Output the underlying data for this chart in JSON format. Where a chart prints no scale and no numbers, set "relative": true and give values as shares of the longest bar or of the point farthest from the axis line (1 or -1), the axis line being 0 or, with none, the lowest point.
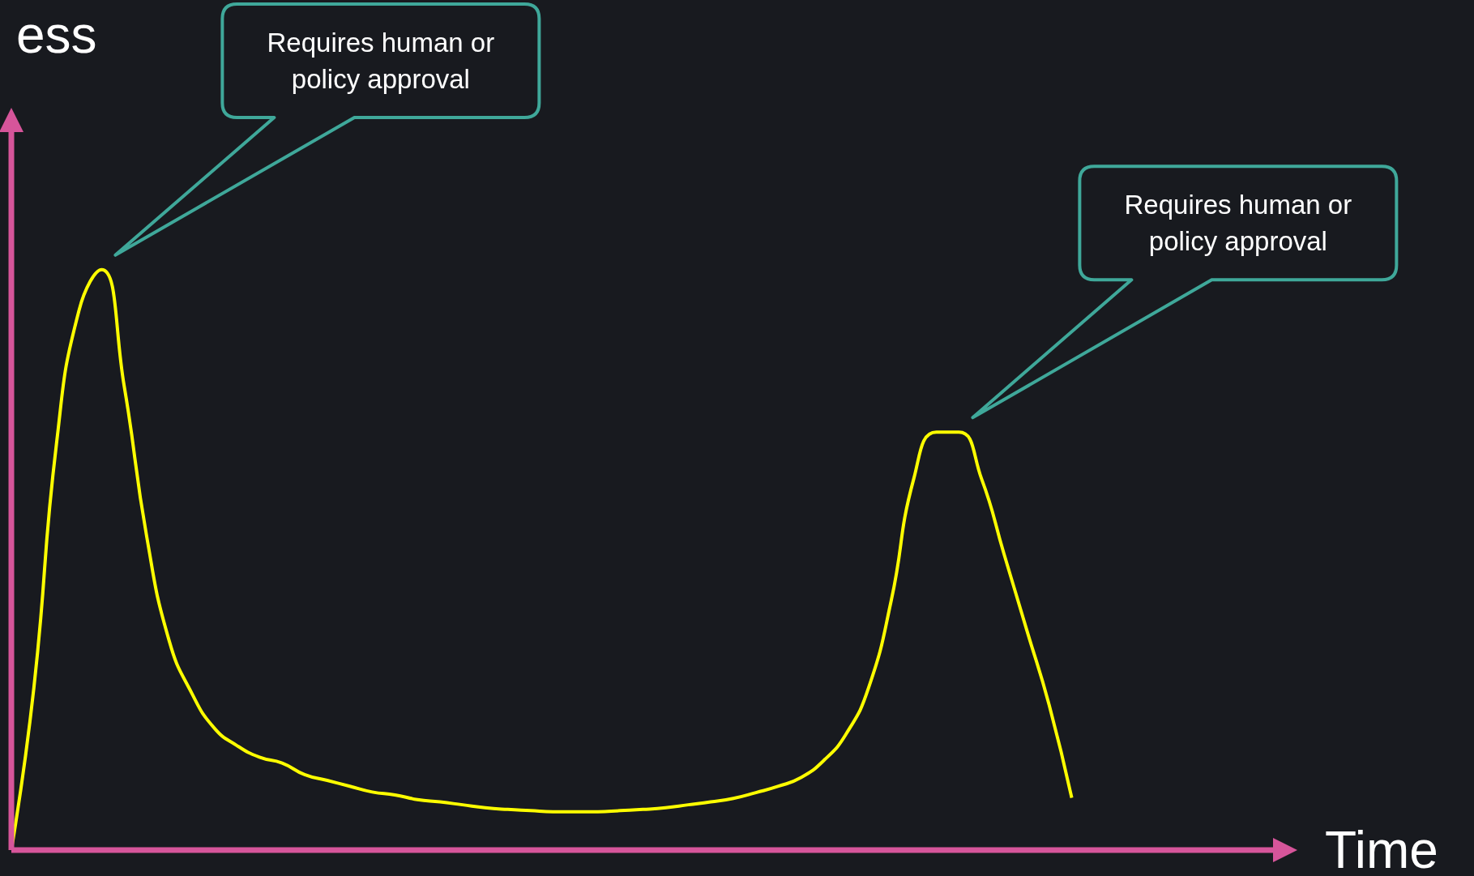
{
  "chart_data": {
    "type": "line",
    "xlabel": "Time",
    "ylabel": "ess",
    "relative": true,
    "marker": "none",
    "categories": [
      null,
      null,
      null,
      null,
      null,
      null,
      null,
      null,
      null,
      null,
      null,
      null,
      null,
      null,
      null,
      null,
      null,
      null,
      null,
      null,
      null,
      null,
      null,
      null,
      null,
      null,
      null,
      null,
      null,
      null,
      null,
      null,
      null,
      null,
      null,
      null,
      null,
      null,
      null,
      null,
      null,
      null,
      null,
      null,
      null,
      null,
      null,
      null,
      null,
      null,
      null,
      null,
      null,
      null,
      null,
      null,
      null,
      null
    ],
    "series": [
      {
        "color": "#ffff00",
        "values": [
          0,
          0.28,
          0.7,
          0.93,
          1,
          0.8,
          0.54,
          0.36,
          0.27,
          0.21,
          0.18,
          0.16,
          0.15,
          0.13,
          0.12,
          0.11,
          0.1,
          0.095,
          0.087,
          0.083,
          0.078,
          0.073,
          0.07,
          0.068,
          0.066,
          0.066,
          0.066,
          0.068,
          0.07,
          0.073,
          0.078,
          0.083,
          0.089,
          0.099,
          0.11,
          0.125,
          0.154,
          0.2,
          0.28,
          0.43,
          0.64,
          0.72,
          0.72,
          0.64,
          0.51,
          0.38,
          0.25,
          0.09,
          null,
          null,
          null,
          null,
          null,
          null,
          null,
          null,
          null,
          null
        ]
      }
    ],
    "annotations": [
      "Requires human or policy approval",
      "Requires human or policy approval"
    ]
  }
}
